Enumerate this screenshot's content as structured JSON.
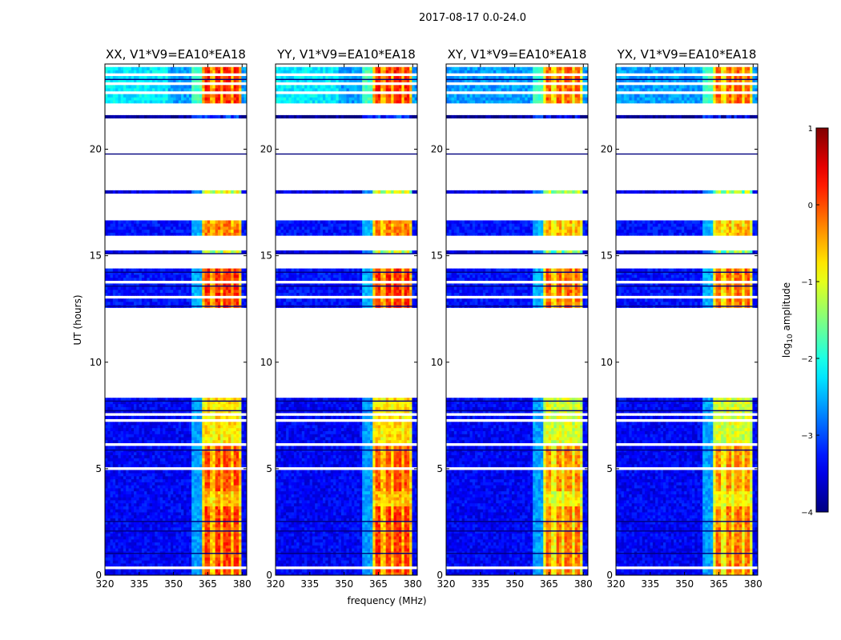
{
  "chart_data": {
    "type": "heatmap",
    "suptitle": "2017-08-17 0.0-24.0",
    "xlabel": "frequency (MHz)",
    "ylabel": "UT (hours)",
    "xlim": [
      320,
      382
    ],
    "ylim": [
      0,
      24
    ],
    "x_ticks": [
      {
        "value": 320,
        "label": "320"
      },
      {
        "value": 335,
        "label": "335"
      },
      {
        "value": 350,
        "label": "350"
      },
      {
        "value": 365,
        "label": "365"
      },
      {
        "value": 380,
        "label": "380"
      }
    ],
    "y_ticks": [
      {
        "value": 0,
        "label": "0"
      },
      {
        "value": 5,
        "label": "5"
      },
      {
        "value": 10,
        "label": "10"
      },
      {
        "value": 15,
        "label": "15"
      },
      {
        "value": 20,
        "label": "20"
      }
    ],
    "panels": [
      {
        "title": "XX, V1*V9=EA10*EA18",
        "seed": 11
      },
      {
        "title": "YY, V1*V9=EA10*EA18",
        "seed": 23
      },
      {
        "title": "XY, V1*V9=EA10*EA18",
        "seed": 37
      },
      {
        "title": "YX, V1*V9=EA10*EA18",
        "seed": 53
      }
    ],
    "colorbar": {
      "label": "log10 amplitude",
      "label_main": "log",
      "label_sub": "10",
      "label_rest": " amplitude",
      "range": [
        -4,
        1
      ],
      "ticks": [
        {
          "value": 1,
          "label": "1"
        },
        {
          "value": 0,
          "label": "0"
        },
        {
          "value": -1,
          "label": "−1"
        },
        {
          "value": -2,
          "label": "−2"
        },
        {
          "value": -3,
          "label": "−3"
        },
        {
          "value": -4,
          "label": "−4"
        }
      ]
    },
    "data_blocks": [
      {
        "t_start": 0.0,
        "t_end": 3.3,
        "background": -3.4,
        "band": -0.6,
        "strong": 0.1
      },
      {
        "t_start": 3.3,
        "t_end": 3.9,
        "background": -3.4,
        "band": -0.8,
        "strong": -0.5
      },
      {
        "t_start": 3.9,
        "t_end": 6.2,
        "background": -3.4,
        "band": -0.6,
        "strong": 0.0
      },
      {
        "t_start": 6.2,
        "t_end": 8.3,
        "background": -3.4,
        "band": -0.9,
        "strong": -0.7
      },
      {
        "t_start": 12.6,
        "t_end": 14.4,
        "background": -3.3,
        "band": -0.5,
        "strong": 0.2
      },
      {
        "t_start": 15.05,
        "t_end": 15.2,
        "background": -3.5,
        "band": -1.5,
        "strong": -1.0
      },
      {
        "t_start": 16.0,
        "t_end": 16.7,
        "background": -3.3,
        "band": -0.6,
        "strong": -0.2
      },
      {
        "t_start": 17.95,
        "t_end": 18.1,
        "background": -3.5,
        "band": -1.5,
        "strong": -0.8
      },
      {
        "t_start": 21.4,
        "t_end": 21.6,
        "background": -3.9,
        "band": -3.5,
        "strong": -3.0
      },
      {
        "t_start": 22.2,
        "t_end": 24.0,
        "background": -2.6,
        "band": -0.5,
        "strong": 0.2
      }
    ],
    "rfi_band_mhz": [
      363,
      380
    ],
    "gap_rows_utc": [
      0.4,
      1.7,
      3.4,
      3.65,
      4.8,
      5.05,
      5.8,
      6.15,
      6.9,
      7.3,
      7.6,
      13.05,
      13.4,
      13.8,
      22.7,
      23.1,
      23.5,
      23.9
    ],
    "dark_rows_utc": [
      1.05,
      2.1,
      2.55,
      5.9,
      7.75,
      8.2,
      12.65,
      13.6,
      14.25,
      15.12,
      19.8,
      23.3
    ]
  }
}
